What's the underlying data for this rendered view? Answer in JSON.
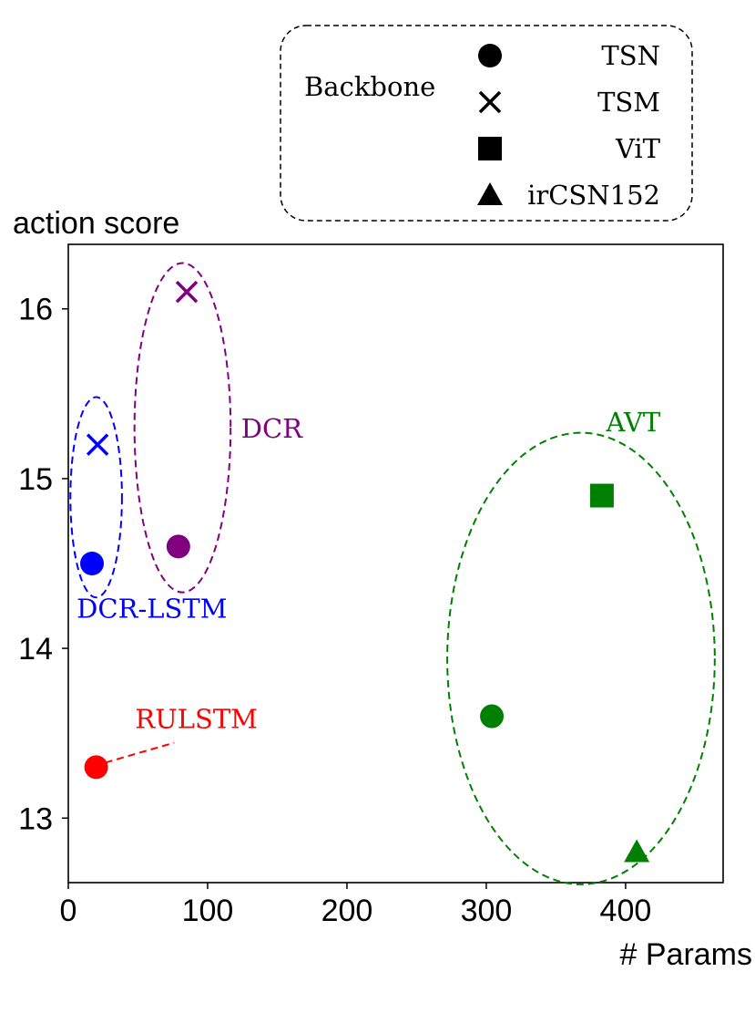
{
  "chart_data": {
    "type": "scatter",
    "xlabel": "# Params",
    "ylabel": "action score",
    "xlim": [
      0,
      470
    ],
    "ylim": [
      12.62,
      16.38
    ],
    "x_ticks": [
      "0",
      "100",
      "200",
      "300",
      "400"
    ],
    "x_tick_values": [
      0,
      100,
      200,
      300,
      400
    ],
    "y_ticks": [
      "13",
      "14",
      "15",
      "16"
    ],
    "y_tick_values": [
      13,
      14,
      15,
      16
    ],
    "grid": false,
    "legend": {
      "title": "Backbone",
      "position": "top-right",
      "entries": [
        {
          "label": "TSN",
          "marker": "circle"
        },
        {
          "label": "TSM",
          "marker": "x"
        },
        {
          "label": "ViT",
          "marker": "square"
        },
        {
          "label": "irCSN152",
          "marker": "triangle"
        }
      ]
    },
    "colors": {
      "DCR-LSTM": "#0000ff",
      "DCR": "#800080",
      "AVT": "#008000",
      "RULSTM": "#ff0000"
    },
    "groups": [
      {
        "name": "DCR-LSTM",
        "points": [
          {
            "x": 17,
            "y": 14.5,
            "backbone": "TSN",
            "marker": "circle"
          },
          {
            "x": 21,
            "y": 15.2,
            "backbone": "TSM",
            "marker": "x"
          }
        ],
        "ellipse": {
          "cx": 20,
          "cy": 14.89,
          "rx": 18.5,
          "ry": 0.59
        }
      },
      {
        "name": "DCR",
        "points": [
          {
            "x": 79,
            "y": 14.6,
            "backbone": "TSN",
            "marker": "circle"
          },
          {
            "x": 85,
            "y": 16.1,
            "backbone": "TSM",
            "marker": "x"
          }
        ],
        "ellipse": {
          "cx": 82,
          "cy": 15.3,
          "rx": 34.5,
          "ry": 0.97
        }
      },
      {
        "name": "AVT",
        "points": [
          {
            "x": 383,
            "y": 14.9,
            "backbone": "ViT",
            "marker": "square"
          },
          {
            "x": 304,
            "y": 13.6,
            "backbone": "TSN",
            "marker": "circle"
          },
          {
            "x": 408,
            "y": 12.8,
            "backbone": "irCSN152",
            "marker": "triangle"
          }
        ],
        "ellipse": {
          "cx": 368,
          "cy": 13.94,
          "rx": 96,
          "ry": 1.33
        }
      },
      {
        "name": "RULSTM",
        "points": [
          {
            "x": 20,
            "y": 13.3,
            "backbone": "TSN",
            "marker": "circle"
          }
        ]
      }
    ],
    "labels": [
      {
        "text": "DCR-LSTM",
        "x": 6,
        "y": 14.18,
        "color": "#0000ff"
      },
      {
        "text": "DCR",
        "x": 124,
        "y": 15.24,
        "color": "#800080"
      },
      {
        "text": "AVT",
        "x": 386,
        "y": 15.28,
        "color": "#008000"
      },
      {
        "text": "RULSTM",
        "x": 48,
        "y": 13.53,
        "color": "#ff0000"
      }
    ]
  }
}
